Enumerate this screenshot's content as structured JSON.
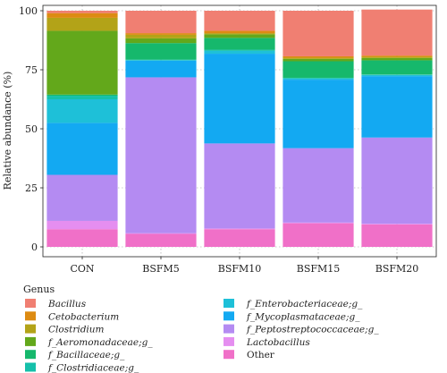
{
  "chart_data": {
    "type": "bar",
    "stacked": true,
    "title": "",
    "xlabel": "",
    "ylabel": "Relative abundance (%)",
    "ylim": [
      0,
      100
    ],
    "yticks": [
      0,
      25,
      50,
      75,
      100
    ],
    "grid": true,
    "legend_position": "bottom",
    "legend_title": "Genus",
    "categories": [
      "CON",
      "BSFM5",
      "BSFM10",
      "BSFM15",
      "BSFM20"
    ],
    "series": [
      {
        "name": "Other",
        "italic": false,
        "color": "#f070c8",
        "values": [
          7.5,
          5.5,
          7.5,
          10,
          9.5
        ]
      },
      {
        "name": "Lactobacillus",
        "italic": true,
        "color": "#e58ef0",
        "values": [
          3.5,
          0.3,
          0.3,
          0.3,
          0.3
        ]
      },
      {
        "name": "f_Peptostreptococcaceae;g_",
        "italic": true,
        "color": "#b48bf2",
        "values": [
          19.5,
          66,
          36,
          31.5,
          36.5
        ]
      },
      {
        "name": "f_Mycoplasmataceae;g_",
        "italic": true,
        "color": "#13a9f2",
        "values": [
          22,
          7,
          38,
          29,
          26
        ]
      },
      {
        "name": "f_Enterobacteriaceae;g_",
        "italic": true,
        "color": "#1ec0d8",
        "values": [
          10,
          0.3,
          1.2,
          0.5,
          0.5
        ]
      },
      {
        "name": "f_Clostridiaceae;g_",
        "italic": true,
        "color": "#15c0aa",
        "values": [
          1.5,
          0.2,
          0.5,
          0.3,
          0.2
        ]
      },
      {
        "name": "f_Bacillaceae;g_",
        "italic": true,
        "color": "#16b86c",
        "values": [
          0.5,
          7,
          5,
          7,
          6
        ]
      },
      {
        "name": "f_Aeromonadaceae;g_",
        "italic": true,
        "color": "#63a81b",
        "values": [
          27,
          2,
          1.5,
          1,
          1
        ]
      },
      {
        "name": "Clostridium",
        "italic": true,
        "color": "#b3a318",
        "values": [
          5.5,
          1.5,
          0.5,
          0.5,
          0.5
        ]
      },
      {
        "name": "Cetobacterium",
        "italic": true,
        "color": "#dd8b12",
        "values": [
          2,
          0.7,
          1,
          0.6,
          0.5
        ]
      },
      {
        "name": "Bacillus",
        "italic": true,
        "color": "#f07f72",
        "values": [
          1,
          9.5,
          8.5,
          19.3,
          19.5
        ]
      }
    ],
    "legend_order": [
      "Bacillus",
      "Cetobacterium",
      "Clostridium",
      "f_Aeromonadaceae;g_",
      "f_Bacillaceae;g_",
      "f_Clostridiaceae;g_",
      "f_Enterobacteriaceae;g_",
      "f_Mycoplasmataceae;g_",
      "f_Peptostreptococcaceae;g_",
      "Lactobacillus",
      "Other"
    ]
  }
}
